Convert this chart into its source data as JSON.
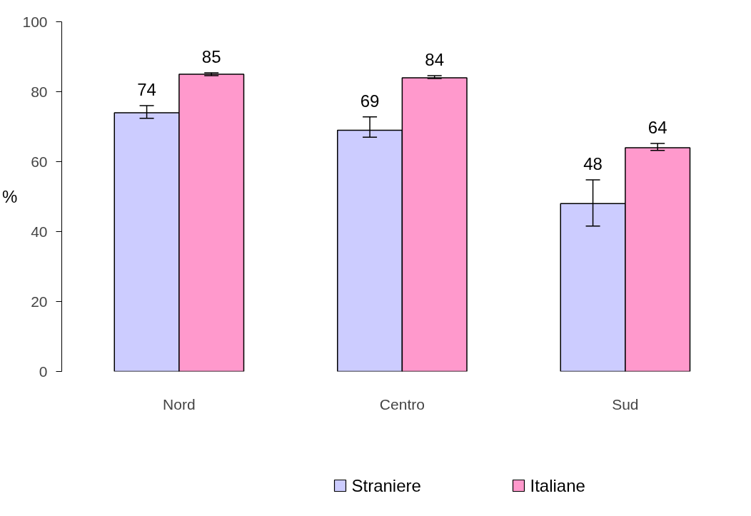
{
  "chart_data": {
    "type": "bar",
    "categories": [
      "Nord",
      "Centro",
      "Sud"
    ],
    "ylabel": "%",
    "ylim": [
      0,
      100
    ],
    "yticks": [
      0,
      20,
      40,
      60,
      80,
      100
    ],
    "grid": false,
    "legend": "bottom",
    "data_labels": true,
    "series": [
      {
        "name": "Straniere",
        "color": "#ccccff",
        "values": [
          74,
          69,
          48
        ],
        "errors": [
          [
            72.4,
            76.0
          ],
          [
            67.0,
            72.8
          ],
          [
            41.6,
            54.8
          ]
        ]
      },
      {
        "name": "Italiane",
        "color": "#ff99cc",
        "values": [
          85,
          84,
          64
        ],
        "errors": [
          [
            84.6,
            85.4
          ],
          [
            83.8,
            84.6
          ],
          [
            63.2,
            65.2
          ]
        ]
      }
    ]
  }
}
